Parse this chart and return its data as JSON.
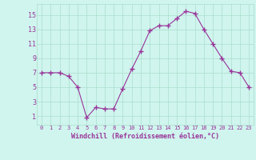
{
  "x": [
    0,
    1,
    2,
    3,
    4,
    5,
    6,
    7,
    8,
    9,
    10,
    11,
    12,
    13,
    14,
    15,
    16,
    17,
    18,
    19,
    20,
    21,
    22,
    23
  ],
  "y": [
    7,
    7,
    7,
    6.5,
    5,
    0.8,
    2.2,
    2.0,
    2.0,
    4.8,
    7.5,
    10,
    12.8,
    13.5,
    13.5,
    14.5,
    15.5,
    15.2,
    13.0,
    11.0,
    9.0,
    7.2,
    7.0,
    5.0
  ],
  "line_color": "#993399",
  "marker": "D",
  "marker_size": 2,
  "bg_color": "#cff5ee",
  "grid_color": "#aaddcc",
  "xlabel": "Windchill (Refroidissement éolien,°C)",
  "ylim": [
    -0.2,
    16.5
  ],
  "xlim": [
    -0.5,
    23.5
  ],
  "yticks": [
    1,
    3,
    5,
    7,
    9,
    11,
    13,
    15
  ],
  "xticks": [
    0,
    1,
    2,
    3,
    4,
    5,
    6,
    7,
    8,
    9,
    10,
    11,
    12,
    13,
    14,
    15,
    16,
    17,
    18,
    19,
    20,
    21,
    22,
    23
  ],
  "tick_color": "#993399",
  "label_color": "#993399"
}
